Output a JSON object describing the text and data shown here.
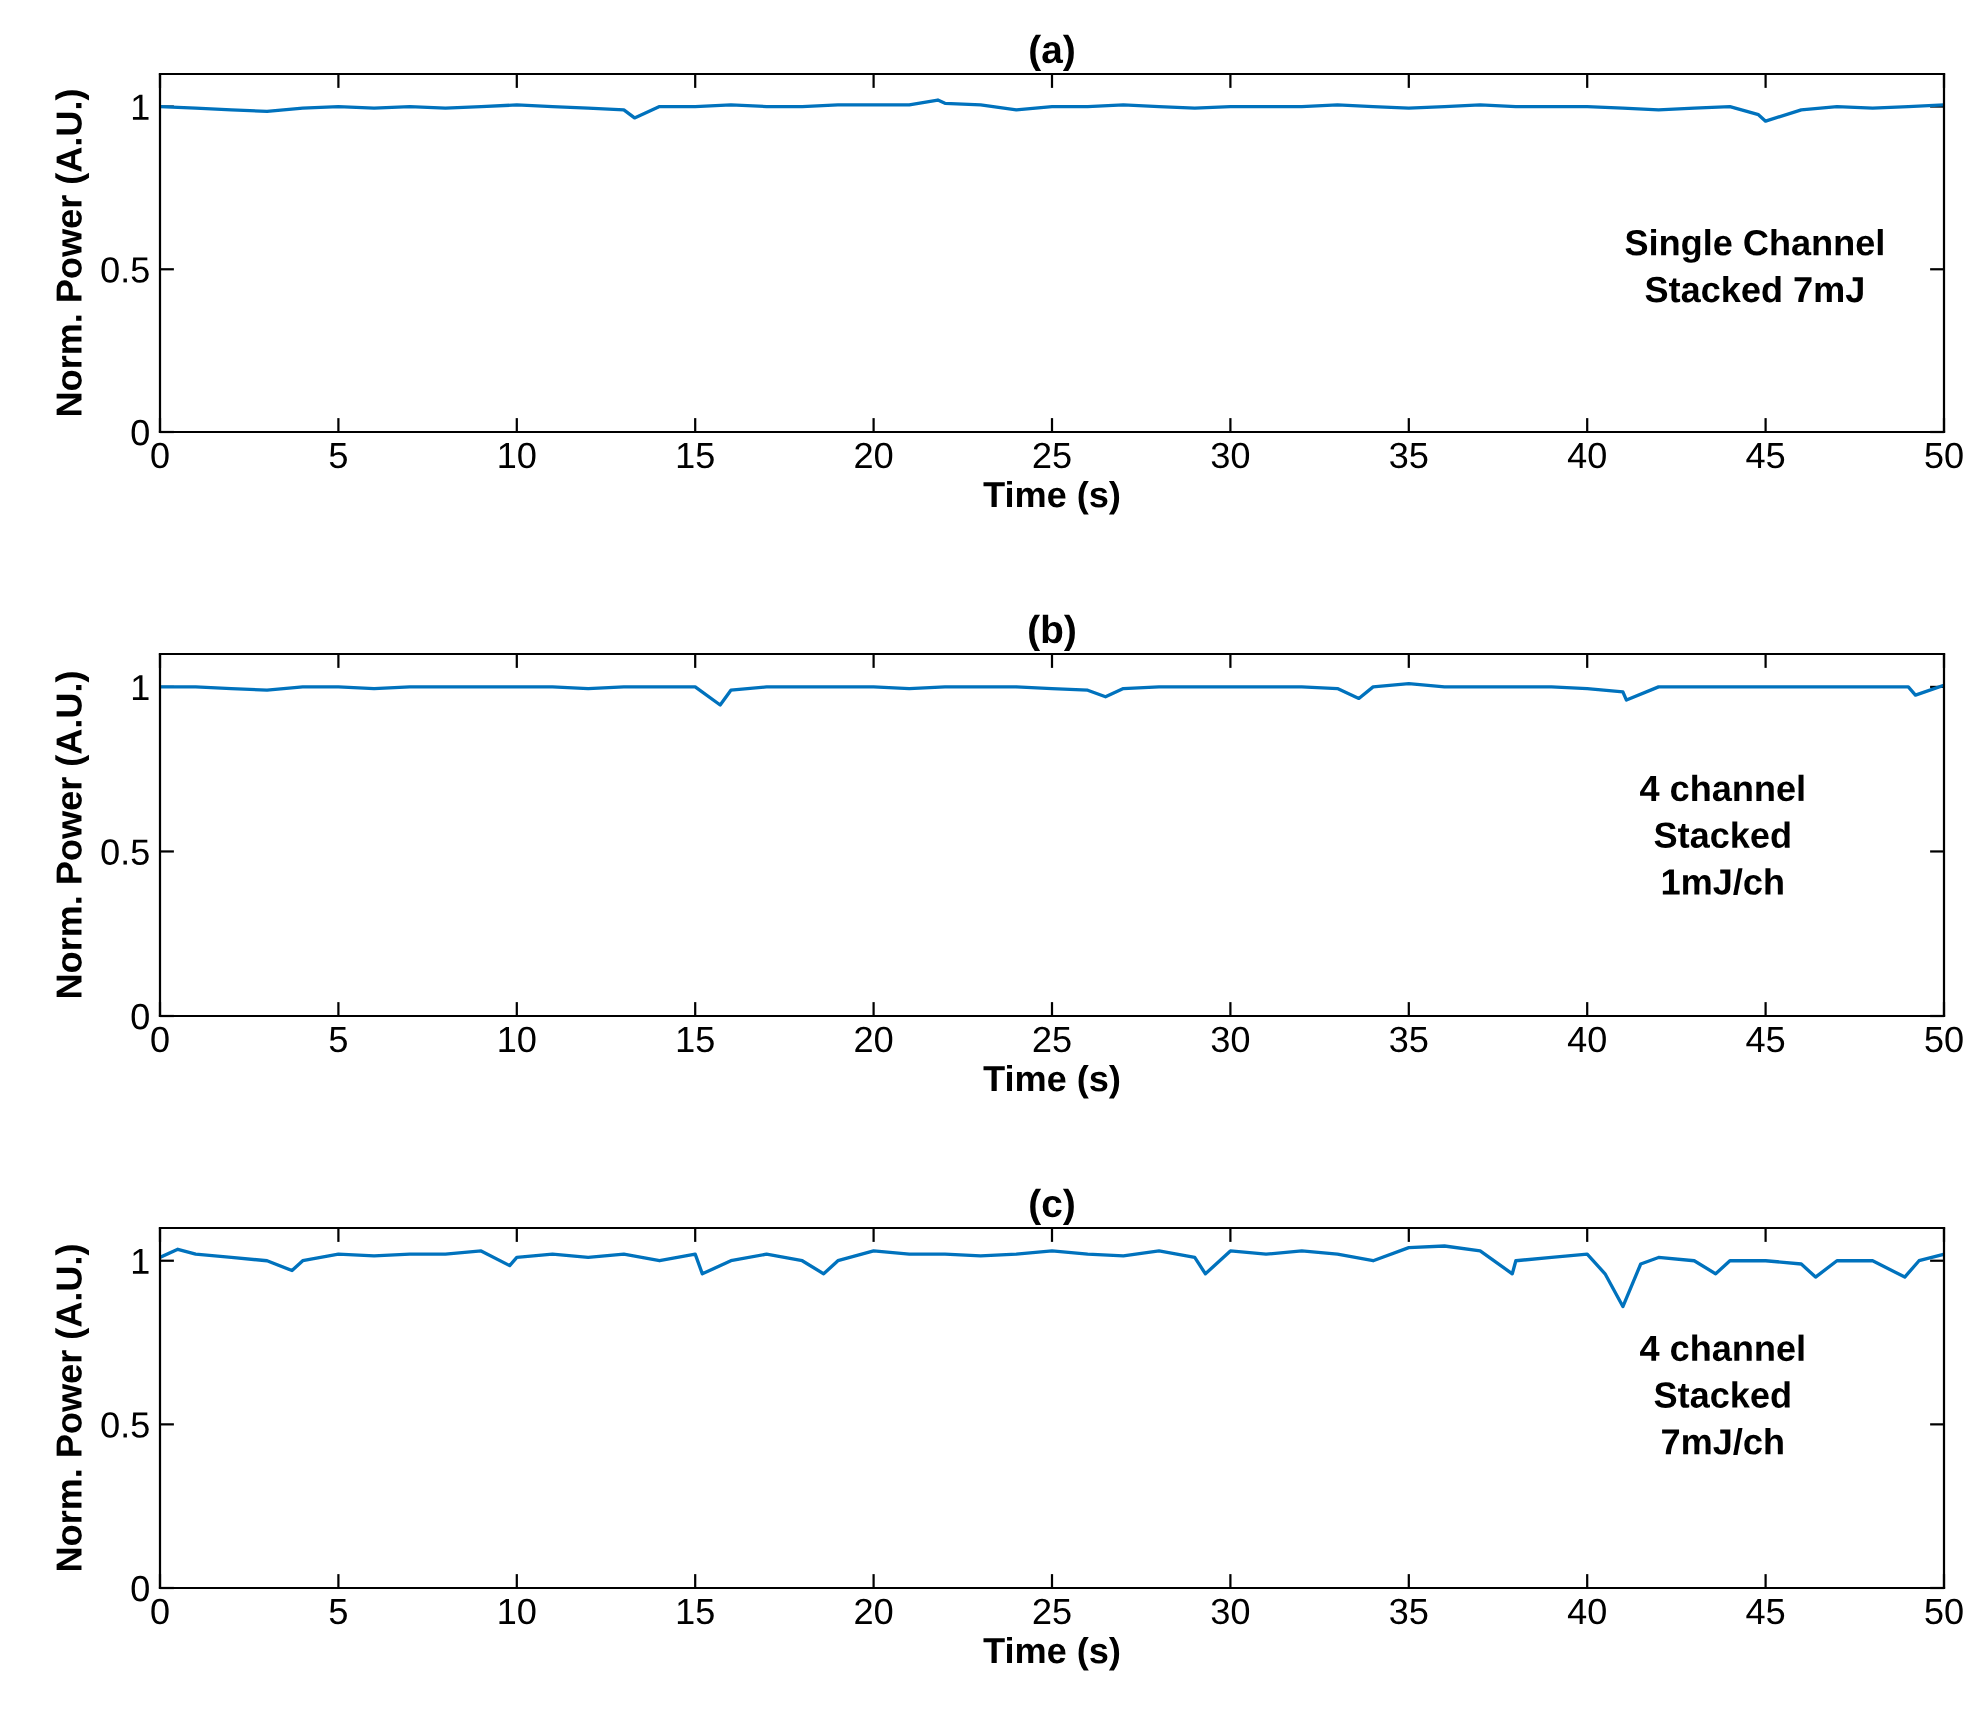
{
  "chart_data": [
    {
      "type": "line",
      "title": "(a)",
      "xlabel": "Time (s)",
      "ylabel": "Norm. Power (A.U.)",
      "xlim": [
        0,
        50
      ],
      "xticks": [
        0,
        5,
        10,
        15,
        20,
        25,
        30,
        35,
        40,
        45,
        50
      ],
      "ylim": [
        0,
        1.1
      ],
      "yticks": [
        0,
        0.5,
        1
      ],
      "grid": false,
      "legend": false,
      "annotations": [
        "Single Channel\nStacked 7mJ"
      ],
      "series": [
        {
          "color": "#0072bd",
          "x": [
            0,
            1,
            2,
            3,
            4,
            5,
            6,
            7,
            8,
            9,
            10,
            11,
            12,
            13,
            13.3,
            14,
            15,
            16,
            17,
            18,
            19,
            20,
            21,
            21.8,
            22,
            23,
            24,
            25,
            26,
            27,
            28,
            29,
            30,
            31,
            32,
            33,
            34,
            35,
            36,
            37,
            38,
            39,
            40,
            41,
            42,
            43,
            44,
            44.8,
            45,
            46,
            47,
            48,
            49,
            50
          ],
          "values": [
            1.0,
            0.995,
            0.99,
            0.985,
            0.995,
            1.0,
            0.995,
            1.0,
            0.995,
            1.0,
            1.005,
            1.0,
            0.995,
            0.99,
            0.965,
            1.0,
            1.0,
            1.005,
            1.0,
            1.0,
            1.005,
            1.005,
            1.005,
            1.02,
            1.01,
            1.005,
            0.99,
            1.0,
            1.0,
            1.005,
            1.0,
            0.995,
            1.0,
            1.0,
            1.0,
            1.005,
            1.0,
            0.995,
            1.0,
            1.005,
            1.0,
            1.0,
            1.0,
            0.995,
            0.99,
            0.995,
            1.0,
            0.975,
            0.955,
            0.99,
            1.0,
            0.995,
            1.0,
            1.005
          ]
        }
      ]
    },
    {
      "type": "line",
      "title": "(b)",
      "xlabel": "Time (s)",
      "ylabel": "Norm. Power (A.U.)",
      "xlim": [
        0,
        50
      ],
      "xticks": [
        0,
        5,
        10,
        15,
        20,
        25,
        30,
        35,
        40,
        45,
        50
      ],
      "ylim": [
        0,
        1.1
      ],
      "yticks": [
        0,
        0.5,
        1
      ],
      "grid": false,
      "legend": false,
      "annotations": [
        "4 channel\nStacked\n1mJ/ch"
      ],
      "series": [
        {
          "color": "#0072bd",
          "x": [
            0,
            1,
            2,
            3,
            4,
            5,
            6,
            7,
            8,
            9,
            10,
            11,
            12,
            13,
            14,
            15,
            15.7,
            16,
            17,
            18,
            19,
            20,
            21,
            22,
            23,
            24,
            25,
            26,
            26.5,
            27,
            28,
            29,
            30,
            31,
            32,
            33,
            33.6,
            34,
            35,
            36,
            37,
            38,
            39,
            40,
            41,
            41.1,
            42,
            43,
            44,
            45,
            46,
            47,
            48,
            49,
            49.2,
            50
          ],
          "values": [
            1.0,
            1.0,
            0.995,
            0.99,
            1.0,
            1.0,
            0.995,
            1.0,
            1.0,
            1.0,
            1.0,
            1.0,
            0.995,
            1.0,
            1.0,
            1.0,
            0.945,
            0.99,
            1.0,
            1.0,
            1.0,
            1.0,
            0.995,
            1.0,
            1.0,
            1.0,
            0.995,
            0.99,
            0.97,
            0.995,
            1.0,
            1.0,
            1.0,
            1.0,
            1.0,
            0.995,
            0.965,
            1.0,
            1.01,
            1.0,
            1.0,
            1.0,
            1.0,
            0.995,
            0.985,
            0.96,
            1.0,
            1.0,
            1.0,
            1.0,
            1.0,
            1.0,
            1.0,
            1.0,
            0.975,
            1.005
          ]
        }
      ]
    },
    {
      "type": "line",
      "title": "(c)",
      "xlabel": "Time (s)",
      "ylabel": "Norm. Power (A.U.)",
      "xlim": [
        0,
        50
      ],
      "xticks": [
        0,
        5,
        10,
        15,
        20,
        25,
        30,
        35,
        40,
        45,
        50
      ],
      "ylim": [
        0,
        1.1
      ],
      "yticks": [
        0,
        0.5,
        1
      ],
      "grid": false,
      "legend": false,
      "annotations": [
        "4 channel\nStacked\n7mJ/ch"
      ],
      "series": [
        {
          "color": "#0072bd",
          "x": [
            0,
            0.5,
            1,
            2,
            3,
            3.7,
            4,
            5,
            6,
            7,
            8,
            9,
            9.8,
            10,
            11,
            12,
            13,
            14,
            15,
            15.2,
            16,
            17,
            18,
            18.6,
            19,
            20,
            21,
            22,
            23,
            24,
            25,
            26,
            27,
            28,
            29,
            29.3,
            30,
            31,
            32,
            33,
            34,
            35,
            36,
            37,
            37.9,
            38,
            39,
            40,
            40.5,
            41,
            41.5,
            42,
            43,
            43.6,
            44,
            45,
            46,
            46.4,
            47,
            48,
            48.9,
            49.3,
            50
          ],
          "values": [
            1.01,
            1.035,
            1.02,
            1.01,
            1.0,
            0.97,
            1.0,
            1.02,
            1.015,
            1.02,
            1.02,
            1.03,
            0.985,
            1.01,
            1.02,
            1.01,
            1.02,
            1.0,
            1.02,
            0.96,
            1.0,
            1.02,
            1.0,
            0.96,
            1.0,
            1.03,
            1.02,
            1.02,
            1.015,
            1.02,
            1.03,
            1.02,
            1.015,
            1.03,
            1.01,
            0.96,
            1.03,
            1.02,
            1.03,
            1.02,
            1.0,
            1.04,
            1.045,
            1.03,
            0.96,
            1.0,
            1.01,
            1.02,
            0.96,
            0.86,
            0.99,
            1.01,
            1.0,
            0.96,
            1.0,
            1.0,
            0.99,
            0.95,
            1.0,
            1.0,
            0.95,
            1.0,
            1.02
          ]
        }
      ]
    }
  ]
}
